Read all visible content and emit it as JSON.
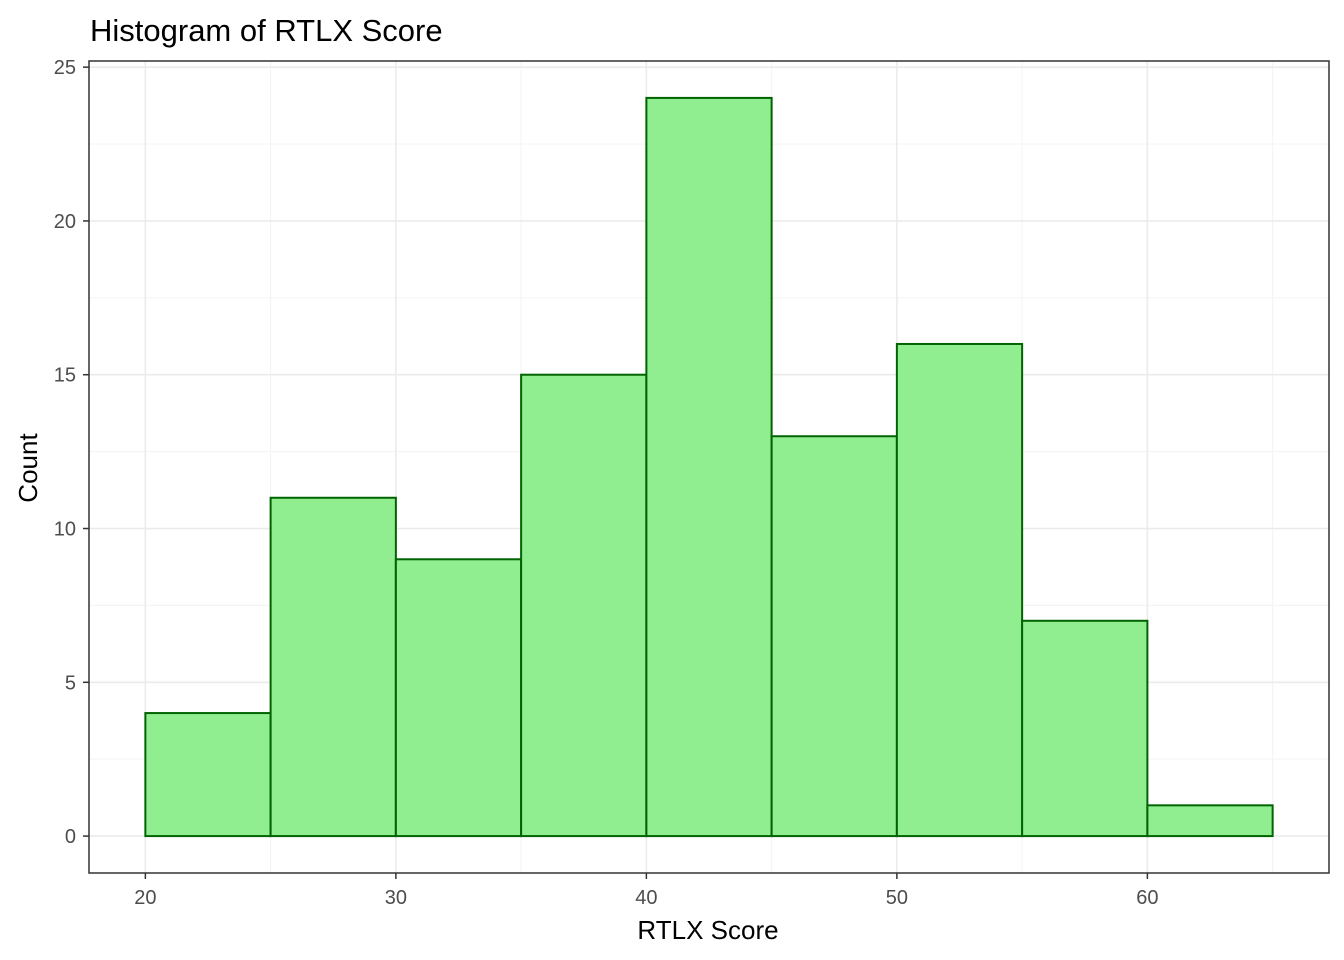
{
  "chart_data": {
    "type": "bar",
    "title": "Histogram of RTLX Score",
    "xlabel": "RTLX Score",
    "ylabel": "Count",
    "bins": [
      {
        "start": 20,
        "end": 25,
        "count": 4
      },
      {
        "start": 25,
        "end": 30,
        "count": 11
      },
      {
        "start": 30,
        "end": 35,
        "count": 9
      },
      {
        "start": 35,
        "end": 40,
        "count": 15
      },
      {
        "start": 40,
        "end": 45,
        "count": 24
      },
      {
        "start": 45,
        "end": 50,
        "count": 13
      },
      {
        "start": 50,
        "end": 55,
        "count": 16
      },
      {
        "start": 55,
        "end": 60,
        "count": 7
      },
      {
        "start": 60,
        "end": 65,
        "count": 1
      }
    ],
    "xlim": [
      17.75,
      67.25
    ],
    "ylim": [
      -1.2,
      25.2
    ],
    "x_ticks": [
      20,
      30,
      40,
      50,
      60
    ],
    "x_minor_ticks": [
      25,
      35,
      45,
      55,
      65
    ],
    "y_ticks": [
      0,
      5,
      10,
      15,
      20,
      25
    ],
    "y_minor_ticks": [
      2.5,
      7.5,
      12.5,
      17.5,
      22.5
    ],
    "grid": true,
    "colors": {
      "bar_fill": "#90EE90",
      "bar_stroke": "#006400",
      "grid_major": "#ebebeb",
      "grid_minor": "#f5f5f5",
      "panel_border": "#333333",
      "tick_label": "#4d4d4d"
    }
  }
}
